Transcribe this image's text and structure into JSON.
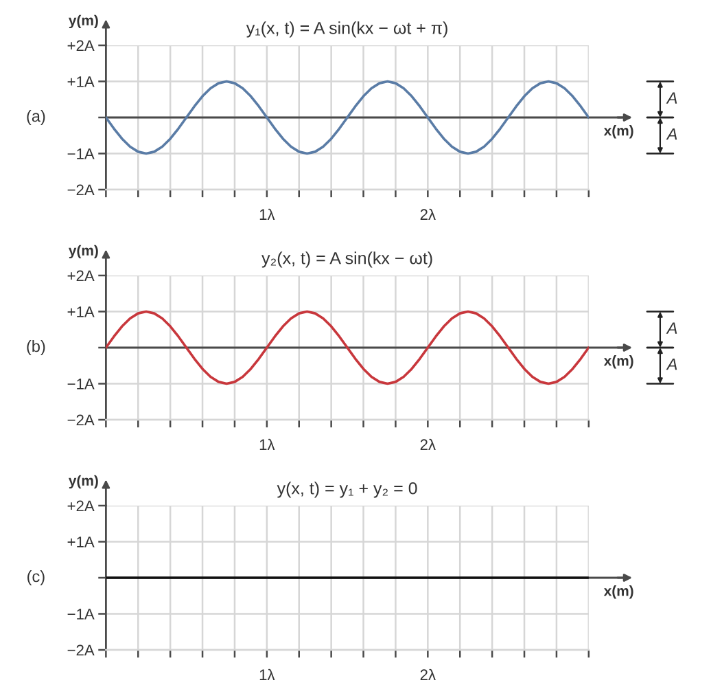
{
  "chart_data": [
    {
      "type": "line",
      "title": "y₁(x, t) = A sin(kx − ωt + π)",
      "xlabel": "x(m)",
      "ylabel": "y(m)",
      "x": [
        0,
        0.05,
        0.1,
        0.15,
        0.2,
        0.25,
        0.3,
        0.35,
        0.4,
        0.45,
        0.5,
        0.55,
        0.6,
        0.65,
        0.7,
        0.75,
        0.8,
        0.85,
        0.9,
        0.95,
        1,
        1.05,
        1.1,
        1.15,
        1.2,
        1.25,
        1.3,
        1.35,
        1.4,
        1.45,
        1.5,
        1.55,
        1.6,
        1.65,
        1.7,
        1.75,
        1.8,
        1.85,
        1.9,
        1.95,
        2,
        2.05,
        2.1,
        2.15,
        2.2,
        2.25,
        2.3,
        2.35,
        2.4,
        2.45,
        2.5,
        2.55,
        2.6,
        2.65,
        2.7,
        2.75,
        2.8,
        2.85,
        2.9,
        2.95,
        3
      ],
      "series": [
        {
          "color": "#5a7ca6",
          "values": [
            0,
            -0.31,
            -0.59,
            -0.81,
            -0.95,
            -1,
            -0.95,
            -0.81,
            -0.59,
            -0.31,
            0,
            0.31,
            0.59,
            0.81,
            0.95,
            1,
            0.95,
            0.81,
            0.59,
            0.31,
            0,
            -0.31,
            -0.59,
            -0.81,
            -0.95,
            -1,
            -0.95,
            -0.81,
            -0.59,
            -0.31,
            0,
            0.31,
            0.59,
            0.81,
            0.95,
            1,
            0.95,
            0.81,
            0.59,
            0.31,
            0,
            -0.31,
            -0.59,
            -0.81,
            -0.95,
            -1,
            -0.95,
            -0.81,
            -0.59,
            -0.31,
            0,
            0.31,
            0.59,
            0.81,
            0.95,
            1,
            0.95,
            0.81,
            0.59,
            0.31,
            0
          ]
        }
      ],
      "xlim": [
        0,
        3
      ],
      "xticks": [
        {
          "value": 0,
          "label": null
        },
        {
          "value": 0.2,
          "label": null
        },
        {
          "value": 0.4,
          "label": null
        },
        {
          "value": 0.6,
          "label": null
        },
        {
          "value": 0.8,
          "label": null
        },
        {
          "value": 1,
          "label": "1λ"
        },
        {
          "value": 1.2,
          "label": null
        },
        {
          "value": 1.4,
          "label": null
        },
        {
          "value": 1.6,
          "label": null
        },
        {
          "value": 1.8,
          "label": null
        },
        {
          "value": 2,
          "label": "2λ"
        },
        {
          "value": 2.2,
          "label": null
        },
        {
          "value": 2.4,
          "label": null
        },
        {
          "value": 2.6,
          "label": null
        },
        {
          "value": 2.8,
          "label": null
        },
        {
          "value": 3,
          "label": null
        }
      ],
      "ylim": [
        -2,
        2
      ],
      "yticks": [
        {
          "value": -2,
          "label": "−2A"
        },
        {
          "value": -1,
          "label": "−1A"
        },
        {
          "value": 0,
          "label": null
        },
        {
          "value": 1,
          "label": "+1A"
        },
        {
          "value": 2,
          "label": "+2A"
        }
      ],
      "grid": true,
      "annotations": [
        "(a)",
        "A",
        "A"
      ]
    },
    {
      "type": "line",
      "title": "y₂(x, t) = A sin(kx − ωt)",
      "xlabel": "x(m)",
      "ylabel": "y(m)",
      "x": [
        0,
        0.05,
        0.1,
        0.15,
        0.2,
        0.25,
        0.3,
        0.35,
        0.4,
        0.45,
        0.5,
        0.55,
        0.6,
        0.65,
        0.7,
        0.75,
        0.8,
        0.85,
        0.9,
        0.95,
        1,
        1.05,
        1.1,
        1.15,
        1.2,
        1.25,
        1.3,
        1.35,
        1.4,
        1.45,
        1.5,
        1.55,
        1.6,
        1.65,
        1.7,
        1.75,
        1.8,
        1.85,
        1.9,
        1.95,
        2,
        2.05,
        2.1,
        2.15,
        2.2,
        2.25,
        2.3,
        2.35,
        2.4,
        2.45,
        2.5,
        2.55,
        2.6,
        2.65,
        2.7,
        2.75,
        2.8,
        2.85,
        2.9,
        2.95,
        3
      ],
      "series": [
        {
          "color": "#c8373c",
          "values": [
            0,
            0.31,
            0.59,
            0.81,
            0.95,
            1,
            0.95,
            0.81,
            0.59,
            0.31,
            0,
            -0.31,
            -0.59,
            -0.81,
            -0.95,
            -1,
            -0.95,
            -0.81,
            -0.59,
            -0.31,
            0,
            0.31,
            0.59,
            0.81,
            0.95,
            1,
            0.95,
            0.81,
            0.59,
            0.31,
            0,
            -0.31,
            -0.59,
            -0.81,
            -0.95,
            -1,
            -0.95,
            -0.81,
            -0.59,
            -0.31,
            0,
            0.31,
            0.59,
            0.81,
            0.95,
            1,
            0.95,
            0.81,
            0.59,
            0.31,
            0,
            -0.31,
            -0.59,
            -0.81,
            -0.95,
            -1,
            -0.95,
            -0.81,
            -0.59,
            -0.31,
            0
          ]
        }
      ],
      "xlim": [
        0,
        3
      ],
      "xticks": [
        {
          "value": 0,
          "label": null
        },
        {
          "value": 0.2,
          "label": null
        },
        {
          "value": 0.4,
          "label": null
        },
        {
          "value": 0.6,
          "label": null
        },
        {
          "value": 0.8,
          "label": null
        },
        {
          "value": 1,
          "label": "1λ"
        },
        {
          "value": 1.2,
          "label": null
        },
        {
          "value": 1.4,
          "label": null
        },
        {
          "value": 1.6,
          "label": null
        },
        {
          "value": 1.8,
          "label": null
        },
        {
          "value": 2,
          "label": "2λ"
        },
        {
          "value": 2.2,
          "label": null
        },
        {
          "value": 2.4,
          "label": null
        },
        {
          "value": 2.6,
          "label": null
        },
        {
          "value": 2.8,
          "label": null
        },
        {
          "value": 3,
          "label": null
        }
      ],
      "ylim": [
        -2,
        2
      ],
      "yticks": [
        {
          "value": -2,
          "label": "−2A"
        },
        {
          "value": -1,
          "label": "−1A"
        },
        {
          "value": 0,
          "label": null
        },
        {
          "value": 1,
          "label": "+1A"
        },
        {
          "value": 2,
          "label": "+2A"
        }
      ],
      "grid": true,
      "annotations": [
        "(b)",
        "A",
        "A"
      ]
    },
    {
      "type": "line",
      "title": "y(x, t) = y₁ + y₂ = 0",
      "xlabel": "x(m)",
      "ylabel": "y(m)",
      "x": [
        0,
        3
      ],
      "series": [
        {
          "color": "#111111",
          "values": [
            0,
            0
          ]
        }
      ],
      "xlim": [
        0,
        3
      ],
      "xticks": [
        {
          "value": 0,
          "label": null
        },
        {
          "value": 0.2,
          "label": null
        },
        {
          "value": 0.4,
          "label": null
        },
        {
          "value": 0.6,
          "label": null
        },
        {
          "value": 0.8,
          "label": null
        },
        {
          "value": 1,
          "label": "1λ"
        },
        {
          "value": 1.2,
          "label": null
        },
        {
          "value": 1.4,
          "label": null
        },
        {
          "value": 1.6,
          "label": null
        },
        {
          "value": 1.8,
          "label": null
        },
        {
          "value": 2,
          "label": "2λ"
        },
        {
          "value": 2.2,
          "label": null
        },
        {
          "value": 2.4,
          "label": null
        },
        {
          "value": 2.6,
          "label": null
        },
        {
          "value": 2.8,
          "label": null
        },
        {
          "value": 3,
          "label": null
        }
      ],
      "ylim": [
        -2,
        2
      ],
      "yticks": [
        {
          "value": -2,
          "label": "−2A"
        },
        {
          "value": -1,
          "label": "−1A"
        },
        {
          "value": 0,
          "label": null
        },
        {
          "value": 1,
          "label": "+1A"
        },
        {
          "value": 2,
          "label": "+2A"
        }
      ],
      "grid": true,
      "annotations": [
        "(c)"
      ]
    }
  ]
}
